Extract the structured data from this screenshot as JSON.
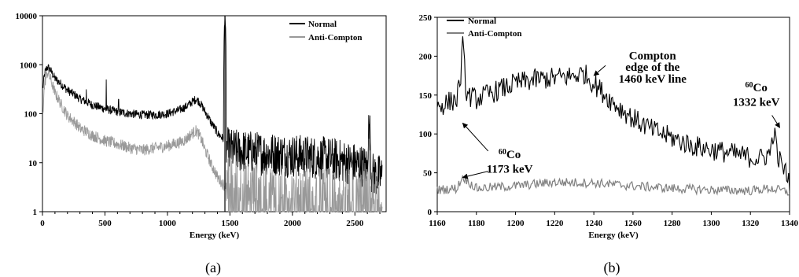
{
  "chart_data": [
    {
      "type": "line",
      "panel_label": "(a)",
      "xlabel": "Energy (keV)",
      "ylabel": "",
      "xlim": [
        0,
        2750
      ],
      "ylim": [
        1,
        10000
      ],
      "yscale": "log",
      "xticks": [
        "0",
        "500",
        "1000",
        "1500",
        "2000",
        "2500"
      ],
      "yticks": [
        "1",
        "10",
        "100",
        "1000",
        "10000"
      ],
      "grid": false,
      "legend_position": "top-right",
      "series": [
        {
          "name": "Normal",
          "color": "#000000",
          "x": [
            5,
            20,
            40,
            60,
            80,
            100,
            150,
            200,
            300,
            400,
            500,
            600,
            700,
            800,
            900,
            1000,
            1100,
            1150,
            1200,
            1230,
            1250,
            1300,
            1350,
            1400,
            1450,
            1460,
            1470,
            1500,
            1700,
            2000,
            2300,
            2600,
            2614,
            2630,
            2720
          ],
          "y": [
            350,
            700,
            900,
            800,
            650,
            520,
            400,
            300,
            200,
            150,
            125,
            110,
            100,
            95,
            95,
            100,
            120,
            140,
            175,
            200,
            180,
            110,
            65,
            40,
            30,
            10000,
            20,
            18,
            16,
            14,
            12,
            8,
            60,
            6,
            5
          ]
        },
        {
          "name": "Anti-Compton",
          "color": "#999999",
          "x": [
            5,
            20,
            40,
            60,
            80,
            100,
            150,
            200,
            300,
            400,
            500,
            600,
            700,
            800,
            900,
            1000,
            1100,
            1150,
            1200,
            1230,
            1250,
            1300,
            1350,
            1400,
            1450,
            1460,
            1470,
            1600,
            2000,
            2400,
            2720
          ],
          "y": [
            120,
            450,
            700,
            550,
            380,
            260,
            150,
            90,
            50,
            36,
            28,
            24,
            20,
            18,
            20,
            22,
            26,
            30,
            40,
            45,
            38,
            18,
            9,
            5,
            3.5,
            3.5,
            4,
            3,
            2.5,
            2.2,
            2
          ]
        }
      ]
    },
    {
      "type": "line",
      "panel_label": "(b)",
      "xlabel": "Energy (keV)",
      "ylabel": "",
      "xlim": [
        1160,
        1340
      ],
      "ylim": [
        0,
        250
      ],
      "xticks": [
        "1160",
        "1180",
        "1200",
        "1220",
        "1240",
        "1260",
        "1280",
        "1300",
        "1320",
        "1340"
      ],
      "yticks": [
        "0",
        "50",
        "100",
        "150",
        "200",
        "250"
      ],
      "grid": false,
      "legend_position": "top-left",
      "series": [
        {
          "name": "Normal",
          "color": "#000000",
          "x": [
            1160,
            1165,
            1170,
            1172,
            1173,
            1175,
            1180,
            1190,
            1200,
            1210,
            1220,
            1230,
            1235,
            1240,
            1250,
            1260,
            1270,
            1280,
            1290,
            1300,
            1310,
            1320,
            1325,
            1330,
            1332,
            1334,
            1338,
            1340
          ],
          "y": [
            135,
            140,
            145,
            175,
            215,
            150,
            145,
            155,
            165,
            170,
            172,
            175,
            178,
            165,
            140,
            120,
            105,
            95,
            85,
            80,
            75,
            70,
            68,
            75,
            105,
            70,
            50,
            40
          ]
        },
        {
          "name": "Anti-Compton",
          "color": "#808080",
          "x": [
            1160,
            1170,
            1173,
            1180,
            1200,
            1220,
            1240,
            1260,
            1280,
            1300,
            1320,
            1330,
            1340
          ],
          "y": [
            28,
            30,
            45,
            30,
            33,
            38,
            37,
            33,
            30,
            28,
            27,
            30,
            25
          ]
        }
      ],
      "annotations": [
        {
          "pre": "",
          "sup": "",
          "text": "Compton",
          "x_data": 1270,
          "y_data": 196
        },
        {
          "pre": "",
          "sup": "",
          "text": "edge of the",
          "x_data": 1270,
          "y_data": 181
        },
        {
          "pre": "",
          "sup": "",
          "text": "1460 keV line",
          "x_data": 1270,
          "y_data": 166
        },
        {
          "pre": "",
          "sup": "60",
          "text": "Co",
          "x_data": 1323,
          "y_data": 155
        },
        {
          "pre": "",
          "sup": "",
          "text": "1332 keV",
          "x_data": 1323,
          "y_data": 136
        },
        {
          "pre": "",
          "sup": "60",
          "text": "Co",
          "x_data": 1197,
          "y_data": 69
        },
        {
          "pre": "",
          "sup": "",
          "text": "1173 keV",
          "x_data": 1197,
          "y_data": 50
        }
      ]
    }
  ]
}
